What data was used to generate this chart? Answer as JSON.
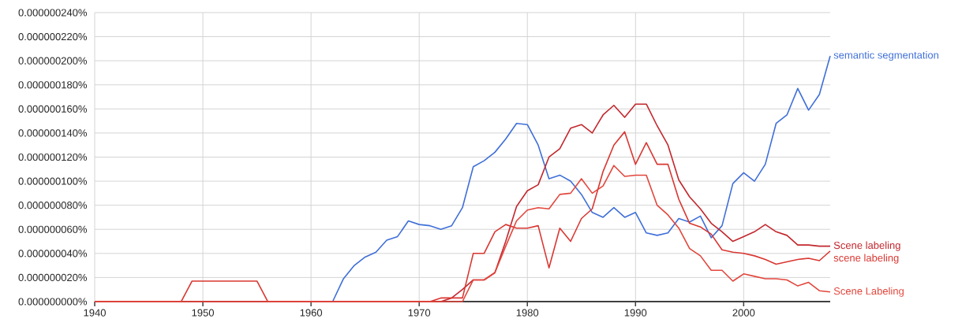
{
  "chart_data": {
    "type": "line",
    "x": [
      1940,
      1941,
      1942,
      1943,
      1944,
      1945,
      1946,
      1947,
      1948,
      1949,
      1950,
      1951,
      1952,
      1953,
      1954,
      1955,
      1956,
      1957,
      1958,
      1959,
      1960,
      1961,
      1962,
      1963,
      1964,
      1965,
      1966,
      1967,
      1968,
      1969,
      1970,
      1971,
      1972,
      1973,
      1974,
      1975,
      1976,
      1977,
      1978,
      1979,
      1980,
      1981,
      1982,
      1983,
      1984,
      1985,
      1986,
      1987,
      1988,
      1989,
      1990,
      1991,
      1992,
      1993,
      1994,
      1995,
      1996,
      1997,
      1998,
      1999,
      2000,
      2001,
      2002,
      2003,
      2004,
      2005,
      2006,
      2007,
      2008
    ],
    "series": [
      {
        "name": "semantic segmentation",
        "color": "#3f6fd8",
        "values": [
          null,
          null,
          null,
          null,
          null,
          null,
          null,
          null,
          null,
          null,
          null,
          null,
          null,
          null,
          null,
          null,
          null,
          null,
          null,
          null,
          null,
          null,
          0,
          1.9e-08,
          3e-08,
          3.7e-08,
          4.1e-08,
          5.1e-08,
          5.4e-08,
          6.7e-08,
          6.4e-08,
          6.3e-08,
          6e-08,
          6.3e-08,
          7.8e-08,
          1.12e-07,
          1.17e-07,
          1.24e-07,
          1.35e-07,
          1.48e-07,
          1.47e-07,
          1.3e-07,
          1.02e-07,
          1.05e-07,
          1e-07,
          8.9e-08,
          7.4e-08,
          7e-08,
          7.8e-08,
          7e-08,
          7.4e-08,
          5.7e-08,
          5.5e-08,
          5.7e-08,
          6.9e-08,
          6.6e-08,
          7.1e-08,
          5.3e-08,
          6.3e-08,
          9.8e-08,
          1.07e-07,
          1e-07,
          1.14e-07,
          1.48e-07,
          1.55e-07,
          1.77e-07,
          1.59e-07,
          1.72e-07,
          2.04e-07
        ]
      },
      {
        "name": "Scene labeling",
        "color": "#c2272d",
        "values": [
          0,
          0,
          0,
          0,
          0,
          0,
          0,
          0,
          0,
          0,
          0,
          0,
          0,
          0,
          0,
          0,
          0,
          0,
          0,
          0,
          0,
          0,
          0,
          0,
          0,
          0,
          0,
          0,
          0,
          0,
          0,
          0,
          0,
          3e-09,
          1e-08,
          1.8e-08,
          1.8e-08,
          2.4e-08,
          5e-08,
          7.9e-08,
          9.2e-08,
          9.7e-08,
          1.2e-07,
          1.27e-07,
          1.44e-07,
          1.47e-07,
          1.4e-07,
          1.55e-07,
          1.63e-07,
          1.53e-07,
          1.64e-07,
          1.64e-07,
          1.46e-07,
          1.3e-07,
          1.01e-07,
          8.7e-08,
          7.7e-08,
          6.5e-08,
          5.8e-08,
          5e-08,
          5.4e-08,
          5.8e-08,
          6.4e-08,
          5.8e-08,
          5.5e-08,
          4.7e-08,
          4.7e-08,
          4.6e-08,
          4.6e-08
        ]
      },
      {
        "name": "scene labeling",
        "color": "#d93732",
        "values": [
          0,
          0,
          0,
          0,
          0,
          0,
          0,
          0,
          0,
          1.7e-08,
          1.7e-08,
          1.7e-08,
          1.7e-08,
          1.7e-08,
          1.7e-08,
          1.7e-08,
          0,
          0,
          0,
          0,
          0,
          0,
          0,
          0,
          0,
          0,
          0,
          0,
          0,
          0,
          0,
          0,
          3e-09,
          3e-09,
          3e-09,
          4e-08,
          4e-08,
          5.8e-08,
          6.4e-08,
          6.1e-08,
          6.1e-08,
          6.3e-08,
          2.8e-08,
          6.1e-08,
          5e-08,
          6.9e-08,
          7.7e-08,
          1.08e-07,
          1.3e-07,
          1.41e-07,
          1.14e-07,
          1.32e-07,
          1.14e-07,
          1.14e-07,
          8.5e-08,
          6.5e-08,
          6.2e-08,
          5.6e-08,
          4.3e-08,
          4.1e-08,
          4e-08,
          3.8e-08,
          3.5e-08,
          3.1e-08,
          3.3e-08,
          3.5e-08,
          3.6e-08,
          3.4e-08,
          4.2e-08
        ]
      },
      {
        "name": "Scene Labeling",
        "color": "#e2463c",
        "values": [
          0,
          0,
          0,
          0,
          0,
          0,
          0,
          0,
          0,
          0,
          0,
          0,
          0,
          0,
          0,
          0,
          0,
          0,
          0,
          0,
          0,
          0,
          0,
          0,
          0,
          0,
          0,
          0,
          0,
          0,
          0,
          0,
          0,
          0,
          0,
          1.8e-08,
          1.8e-08,
          2.4e-08,
          4.6e-08,
          6.7e-08,
          7.6e-08,
          7.8e-08,
          7.7e-08,
          8.9e-08,
          9e-08,
          1.02e-07,
          9e-08,
          9.6e-08,
          1.13e-07,
          1.04e-07,
          1.05e-07,
          1.05e-07,
          8e-08,
          7.2e-08,
          6.1e-08,
          4.4e-08,
          3.8e-08,
          2.6e-08,
          2.6e-08,
          1.7e-08,
          2.3e-08,
          2.1e-08,
          1.9e-08,
          1.9e-08,
          1.8e-08,
          1.3e-08,
          1.6e-08,
          9e-09,
          8e-09
        ]
      }
    ],
    "xlim": [
      1940,
      2008
    ],
    "xticks": [
      1940,
      1950,
      1960,
      1970,
      1980,
      1990,
      2000
    ],
    "ylim": [
      0,
      2.4e-07
    ],
    "yticks": [
      {
        "value": 0,
        "label": "0.000000000%"
      },
      {
        "value": 2e-08,
        "label": "0.000000020%"
      },
      {
        "value": 4e-08,
        "label": "0.000000040%"
      },
      {
        "value": 6e-08,
        "label": "0.000000060%"
      },
      {
        "value": 8e-08,
        "label": "0.000000080%"
      },
      {
        "value": 1e-07,
        "label": "0.000000100%"
      },
      {
        "value": 1.2e-07,
        "label": "0.000000120%"
      },
      {
        "value": 1.4e-07,
        "label": "0.000000140%"
      },
      {
        "value": 1.6e-07,
        "label": "0.000000160%"
      },
      {
        "value": 1.8e-07,
        "label": "0.000000180%"
      },
      {
        "value": 2e-07,
        "label": "0.000000200%"
      },
      {
        "value": 2.2e-07,
        "label": "0.000000220%"
      },
      {
        "value": 2.4e-07,
        "label": "0.000000240%"
      }
    ],
    "grid": true
  }
}
